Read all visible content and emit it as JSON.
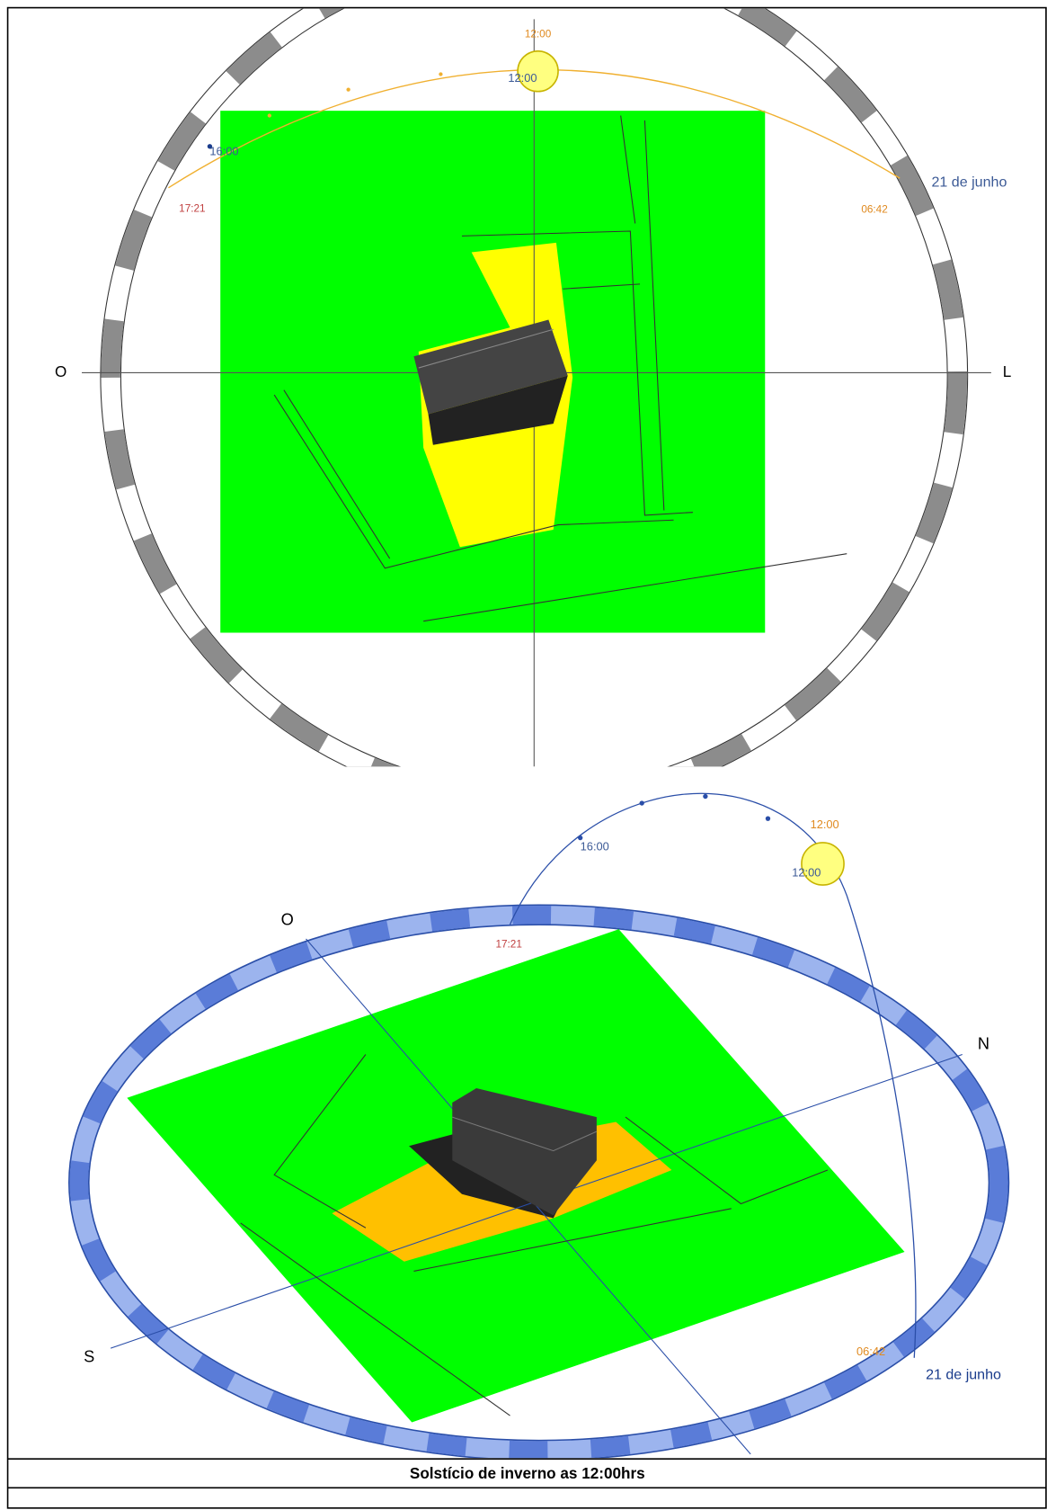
{
  "top_view": {
    "sun_time_orange": "12:00",
    "sun_time_blue": "12:00",
    "hour_label": "16:00",
    "sunset": "17:21",
    "sunrise": "06:42",
    "date": "21 de junho",
    "west": "O",
    "east": "L"
  },
  "perspective_view": {
    "sun_time_orange": "12:00",
    "sun_time_blue": "12:00",
    "hour_label": "16:00",
    "sunset": "17:21",
    "sunrise": "06:42",
    "date": "21 de junho",
    "west": "O",
    "north": "N",
    "south": "S"
  },
  "caption": "Solstício de inverno as 12:00hrs"
}
